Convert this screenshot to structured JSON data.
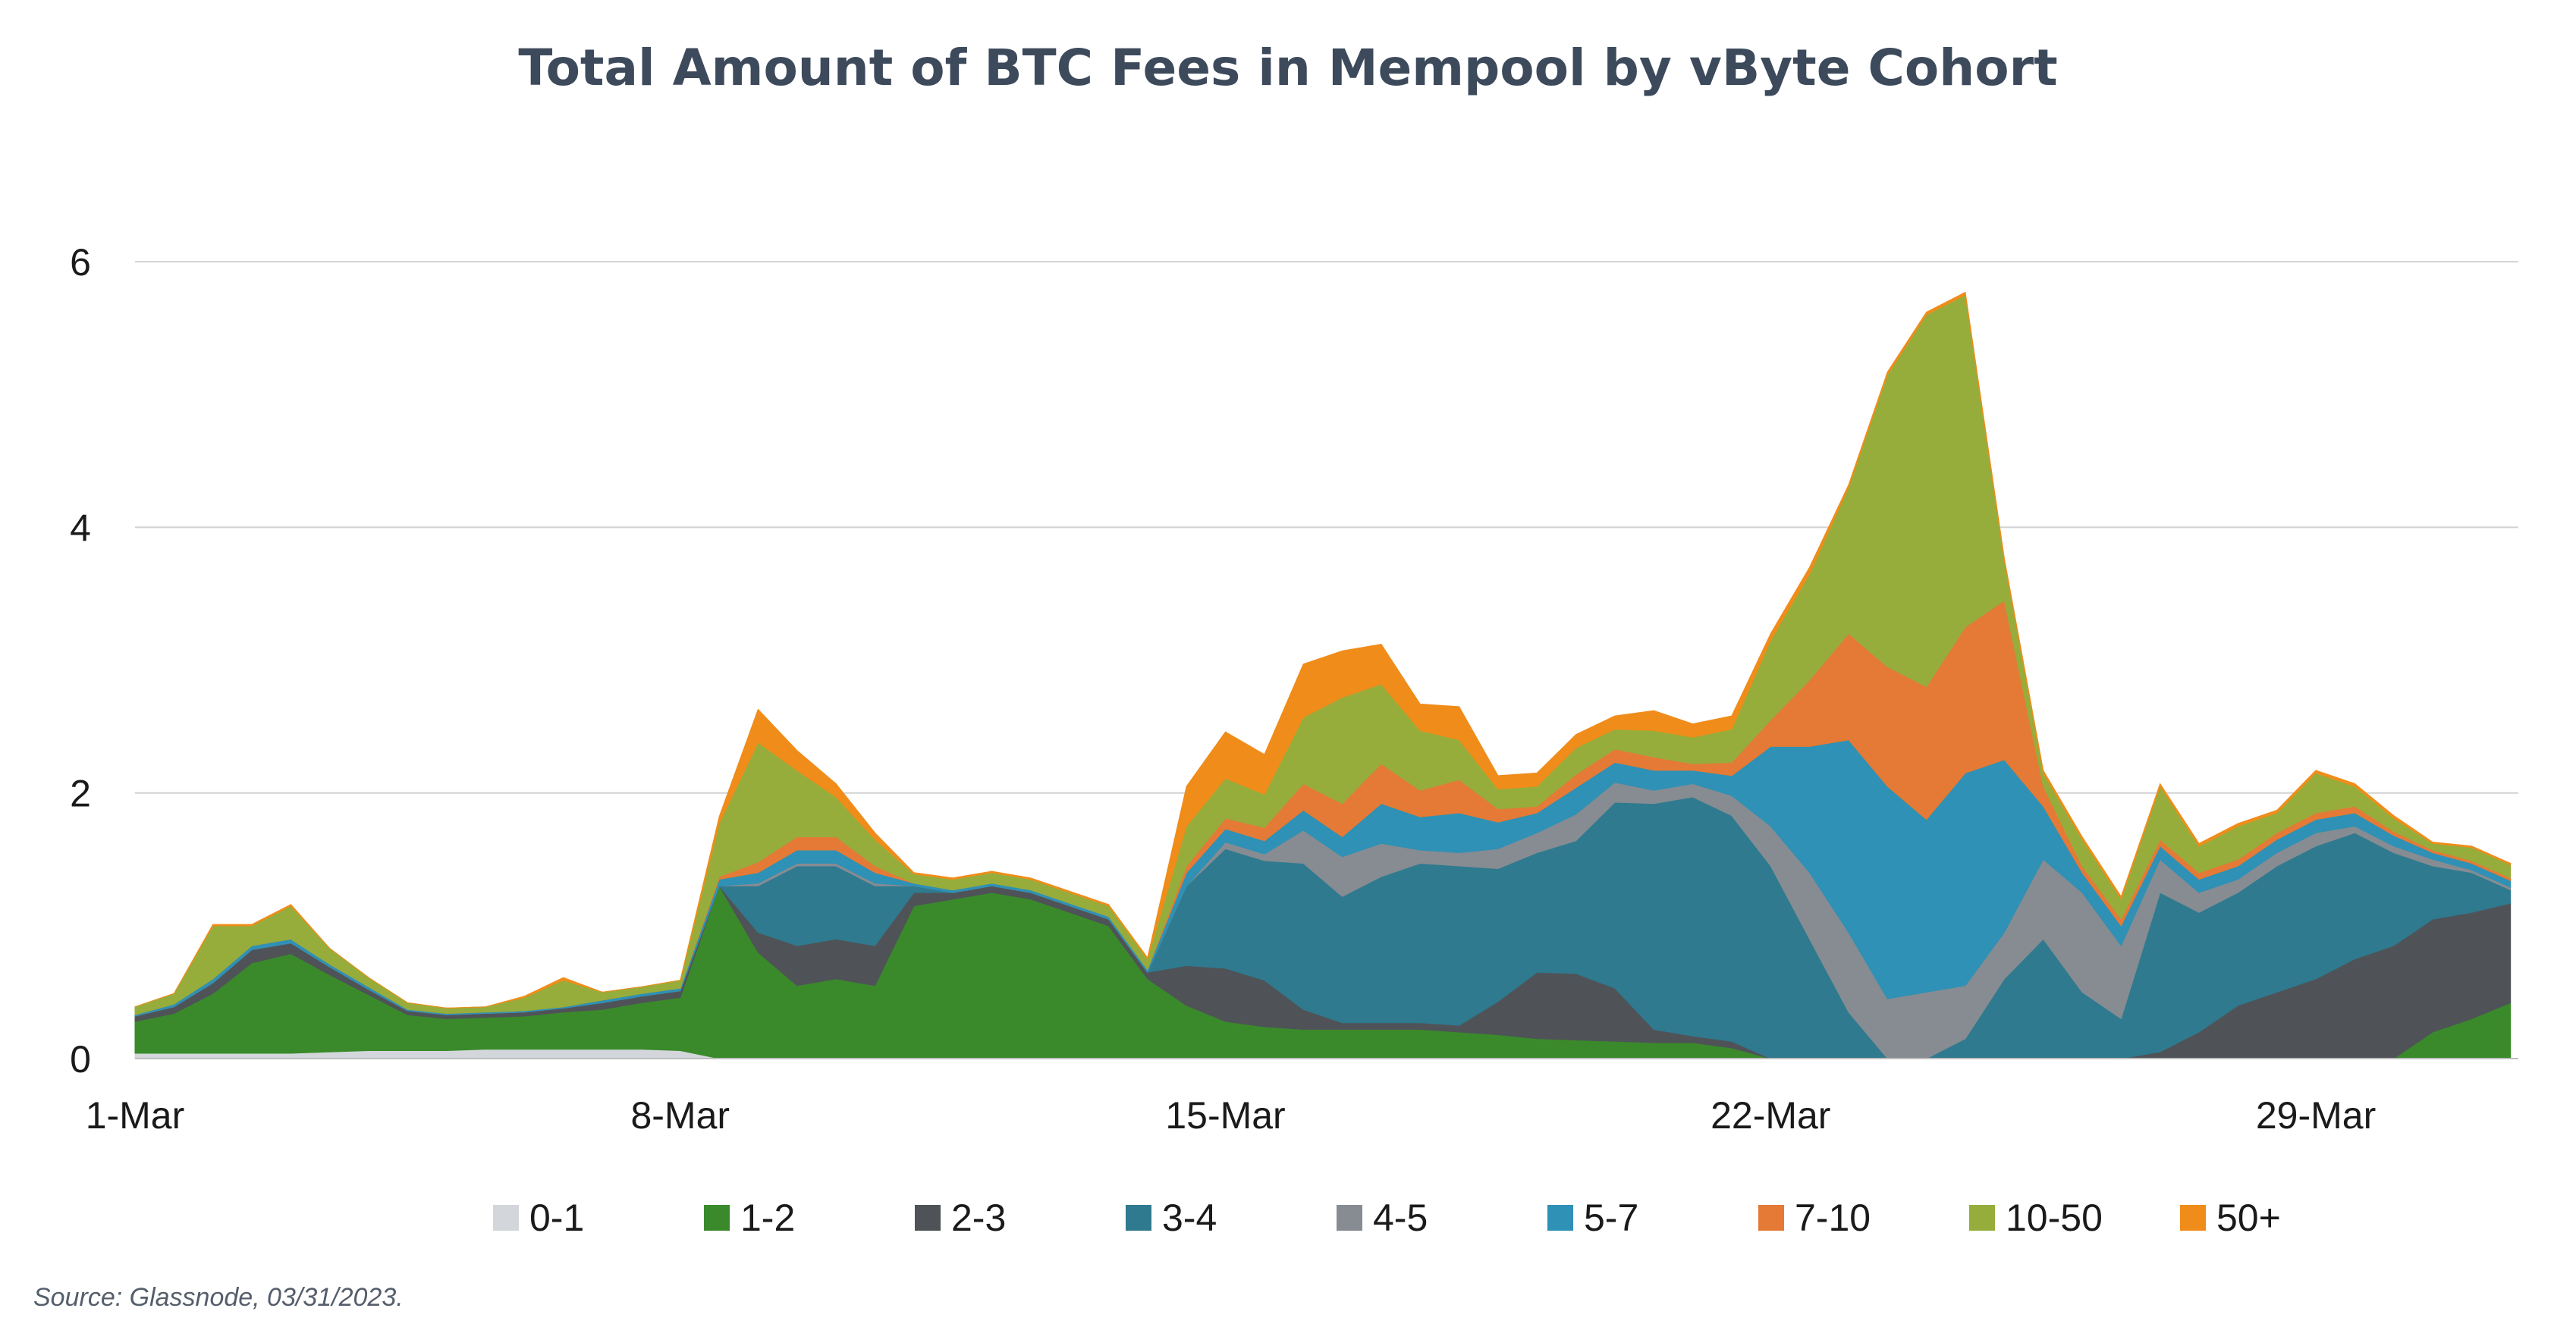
{
  "source_note": "Source: Glassnode, 03/31/2023.",
  "chart_data": {
    "type": "area",
    "stacked": true,
    "title": "Total Amount of BTC Fees in Mempool by vByte Cohort",
    "xlabel": "",
    "ylabel": "",
    "ylim": [
      0,
      7
    ],
    "yticks": [
      0,
      2,
      4,
      6
    ],
    "xlim": [
      1,
      31.6
    ],
    "xticks": [
      {
        "x": 1,
        "label": "1-Mar"
      },
      {
        "x": 8,
        "label": "8-Mar"
      },
      {
        "x": 15,
        "label": "15-Mar"
      },
      {
        "x": 22,
        "label": "22-Mar"
      },
      {
        "x": 29,
        "label": "29-Mar"
      }
    ],
    "grid": "horizontal",
    "legend": "bottom",
    "x": [
      1,
      1.5,
      2,
      2.5,
      3,
      3.5,
      4,
      4.5,
      5,
      5.5,
      6,
      6.5,
      7,
      7.5,
      8,
      8.5,
      9,
      9.5,
      10,
      10.5,
      11,
      11.5,
      12,
      12.5,
      13,
      13.5,
      14,
      14.5,
      15,
      15.5,
      16,
      16.5,
      17,
      17.5,
      18,
      18.5,
      19,
      19.5,
      20,
      20.5,
      21,
      21.5,
      22,
      22.5,
      23,
      23.5,
      24,
      24.5,
      25,
      25.5,
      26,
      26.5,
      27,
      27.5,
      28,
      28.5,
      29,
      29.5,
      30,
      30.5,
      31,
      31.5
    ],
    "series": [
      {
        "name": "0-1",
        "color": "#d3d7db",
        "values": [
          0.04,
          0.04,
          0.04,
          0.04,
          0.04,
          0.05,
          0.06,
          0.06,
          0.06,
          0.07,
          0.07,
          0.07,
          0.07,
          0.07,
          0.06,
          0,
          0,
          0,
          0,
          0,
          0,
          0,
          0,
          0,
          0,
          0,
          0,
          0,
          0,
          0,
          0,
          0,
          0,
          0,
          0,
          0,
          0,
          0,
          0,
          0,
          0,
          0,
          0,
          0,
          0,
          0,
          0,
          0,
          0,
          0,
          0,
          0,
          0,
          0,
          0,
          0,
          0,
          0,
          0,
          0,
          0,
          0
        ]
      },
      {
        "name": "1-2",
        "color": "#3a8a2b",
        "values": [
          0.24,
          0.3,
          0.45,
          0.68,
          0.75,
          0.58,
          0.42,
          0.27,
          0.24,
          0.24,
          0.25,
          0.28,
          0.3,
          0.35,
          0.4,
          1.3,
          0.8,
          0.55,
          0.6,
          0.55,
          1.15,
          1.2,
          1.25,
          1.2,
          1.1,
          1.0,
          0.6,
          0.4,
          0.28,
          0.24,
          0.22,
          0.22,
          0.22,
          0.22,
          0.2,
          0.18,
          0.15,
          0.14,
          0.13,
          0.12,
          0.12,
          0.08,
          0,
          0,
          0,
          0,
          0,
          0,
          0,
          0,
          0,
          0,
          0,
          0,
          0,
          0,
          0,
          0,
          0,
          0.2,
          0.3,
          0.42
        ]
      },
      {
        "name": "2-3",
        "color": "#4f5357",
        "values": [
          0.04,
          0.05,
          0.08,
          0.1,
          0.08,
          0.06,
          0.04,
          0.03,
          0.03,
          0.03,
          0.03,
          0.03,
          0.05,
          0.05,
          0.05,
          0,
          0.15,
          0.3,
          0.3,
          0.3,
          0.1,
          0.05,
          0.05,
          0.05,
          0.05,
          0.05,
          0.05,
          0.3,
          0.4,
          0.35,
          0.15,
          0.05,
          0.05,
          0.05,
          0.05,
          0.25,
          0.5,
          0.5,
          0.4,
          0.1,
          0.05,
          0.05,
          0,
          0,
          0,
          0,
          0,
          0,
          0,
          0,
          0,
          0,
          0.05,
          0.2,
          0.4,
          0.5,
          0.6,
          0.75,
          0.85,
          0.85,
          0.8,
          0.75
        ]
      },
      {
        "name": "3-4",
        "color": "#2f7a8f",
        "values": [
          0,
          0,
          0,
          0,
          0,
          0,
          0,
          0,
          0,
          0,
          0,
          0,
          0,
          0,
          0,
          0,
          0.35,
          0.6,
          0.55,
          0.45,
          0.05,
          0,
          0,
          0,
          0,
          0,
          0,
          0.6,
          0.9,
          0.9,
          1.1,
          0.95,
          1.1,
          1.2,
          1.2,
          1.0,
          0.9,
          1.0,
          1.4,
          1.7,
          1.8,
          1.7,
          1.45,
          0.9,
          0.35,
          0,
          0,
          0.15,
          0.6,
          0.9,
          0.5,
          0.3,
          1.2,
          0.9,
          0.85,
          0.95,
          1.0,
          0.95,
          0.7,
          0.4,
          0.3,
          0.1
        ]
      },
      {
        "name": "4-5",
        "color": "#868c92",
        "values": [
          0,
          0,
          0,
          0,
          0,
          0,
          0,
          0,
          0,
          0,
          0,
          0,
          0,
          0,
          0,
          0,
          0.02,
          0.02,
          0.02,
          0.02,
          0,
          0,
          0,
          0,
          0,
          0,
          0,
          0,
          0.05,
          0.05,
          0.25,
          0.3,
          0.25,
          0.1,
          0.1,
          0.15,
          0.15,
          0.2,
          0.15,
          0.1,
          0.1,
          0.15,
          0.3,
          0.5,
          0.6,
          0.45,
          0.5,
          0.4,
          0.35,
          0.6,
          0.75,
          0.55,
          0.25,
          0.15,
          0.1,
          0.1,
          0.1,
          0.05,
          0.05,
          0.05,
          0.02,
          0.02
        ]
      },
      {
        "name": "5-7",
        "color": "#2e91b5",
        "values": [
          0.01,
          0.02,
          0.03,
          0.03,
          0.03,
          0.02,
          0.02,
          0.01,
          0.01,
          0.01,
          0.01,
          0.01,
          0.02,
          0.02,
          0.02,
          0.05,
          0.08,
          0.1,
          0.1,
          0.08,
          0.02,
          0.02,
          0.02,
          0.02,
          0.02,
          0.02,
          0.02,
          0.1,
          0.1,
          0.1,
          0.15,
          0.15,
          0.3,
          0.25,
          0.3,
          0.2,
          0.15,
          0.2,
          0.15,
          0.15,
          0.1,
          0.15,
          0.6,
          0.95,
          1.45,
          1.6,
          1.3,
          1.6,
          1.3,
          0.4,
          0.15,
          0.15,
          0.1,
          0.1,
          0.1,
          0.1,
          0.1,
          0.1,
          0.08,
          0.05,
          0.05,
          0.05
        ]
      },
      {
        "name": "7-10",
        "color": "#e47a35",
        "values": [
          0,
          0,
          0,
          0,
          0,
          0,
          0,
          0,
          0,
          0,
          0,
          0,
          0,
          0,
          0,
          0.02,
          0.08,
          0.1,
          0.1,
          0.05,
          0,
          0,
          0,
          0,
          0,
          0,
          0,
          0.05,
          0.08,
          0.1,
          0.2,
          0.25,
          0.3,
          0.2,
          0.25,
          0.1,
          0.05,
          0.1,
          0.1,
          0.1,
          0.05,
          0.1,
          0.2,
          0.5,
          0.8,
          0.9,
          1.0,
          1.1,
          1.2,
          0.15,
          0.05,
          0.05,
          0.05,
          0.05,
          0.05,
          0.05,
          0.05,
          0.05,
          0.03,
          0.02,
          0.02,
          0.02
        ]
      },
      {
        "name": "10-50",
        "color": "#97ad3b",
        "values": [
          0.06,
          0.08,
          0.4,
          0.15,
          0.25,
          0.12,
          0.07,
          0.05,
          0.04,
          0.04,
          0.1,
          0.2,
          0.06,
          0.05,
          0.06,
          0.4,
          0.9,
          0.5,
          0.3,
          0.2,
          0.07,
          0.08,
          0.08,
          0.08,
          0.08,
          0.08,
          0.08,
          0.3,
          0.3,
          0.25,
          0.5,
          0.8,
          0.6,
          0.45,
          0.3,
          0.15,
          0.15,
          0.2,
          0.15,
          0.2,
          0.2,
          0.25,
          0.6,
          0.8,
          1.1,
          2.2,
          2.8,
          2.5,
          0.3,
          0.1,
          0.2,
          0.15,
          0.4,
          0.2,
          0.25,
          0.15,
          0.3,
          0.15,
          0.1,
          0.05,
          0.1,
          0.1
        ]
      },
      {
        "name": "50+",
        "color": "#f08c1a",
        "values": [
          0,
          0,
          0.01,
          0.01,
          0.01,
          0,
          0,
          0,
          0,
          0,
          0.01,
          0.02,
          0,
          0,
          0,
          0.05,
          0.25,
          0.15,
          0.1,
          0.05,
          0.01,
          0.01,
          0.01,
          0.01,
          0.01,
          0.01,
          0.01,
          0.3,
          0.35,
          0.3,
          0.4,
          0.35,
          0.3,
          0.2,
          0.25,
          0.1,
          0.1,
          0.1,
          0.1,
          0.15,
          0.1,
          0.1,
          0.05,
          0.05,
          0.02,
          0.02,
          0.02,
          0.02,
          0.02,
          0.02,
          0.02,
          0.02,
          0.02,
          0.02,
          0.02,
          0.02,
          0.02,
          0.02,
          0.02,
          0.01,
          0.01,
          0.01
        ]
      }
    ]
  }
}
